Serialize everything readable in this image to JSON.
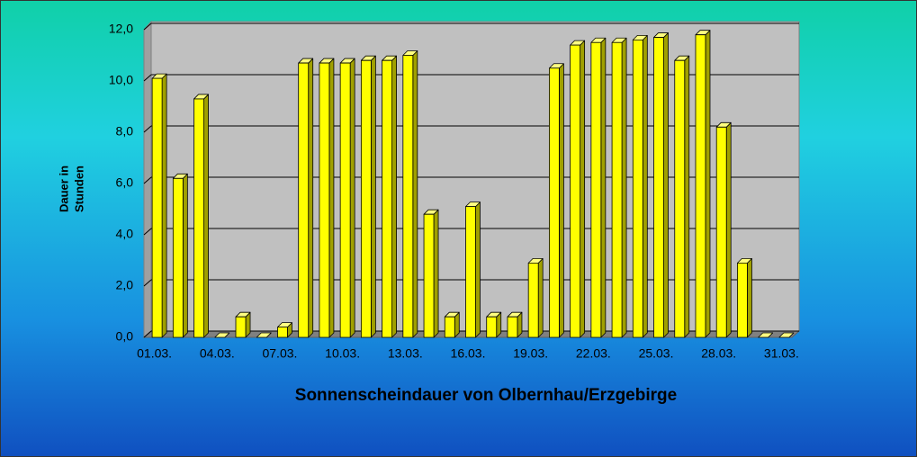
{
  "chart_data": {
    "type": "bar3d",
    "title": "Sonnenscheindauer von Olbernhau/Erzgebirge",
    "ylabel": [
      "Dauer in",
      "Stunden"
    ],
    "categories": [
      "01.03.",
      null,
      null,
      "04.03.",
      null,
      null,
      "07.03.",
      null,
      null,
      "10.03.",
      null,
      null,
      "13.03.",
      null,
      null,
      "16.03.",
      null,
      null,
      "19.03.",
      null,
      null,
      "22.03.",
      null,
      null,
      "25.03.",
      null,
      null,
      "28.03.",
      null,
      null,
      "31.03."
    ],
    "values": [
      10.1,
      6.2,
      9.3,
      0,
      0.8,
      0,
      0.4,
      10.7,
      10.7,
      10.7,
      10.8,
      10.8,
      11.0,
      4.8,
      0.8,
      5.1,
      0.8,
      0.8,
      2.9,
      10.5,
      11.4,
      11.5,
      11.5,
      11.6,
      11.7,
      10.8,
      11.8,
      8.2,
      2.9,
      0,
      0
    ],
    "color": "#ffff00",
    "ylim": [
      0,
      12
    ],
    "yticks": [
      {
        "value": 0,
        "label": "0,0"
      },
      {
        "value": 2,
        "label": "2,0"
      },
      {
        "value": 4,
        "label": "4,0"
      },
      {
        "value": 6,
        "label": "6,0"
      },
      {
        "value": 8,
        "label": "8,0"
      },
      {
        "value": 10,
        "label": "10,0"
      },
      {
        "value": 12,
        "label": "12,0"
      }
    ],
    "grid": true
  }
}
